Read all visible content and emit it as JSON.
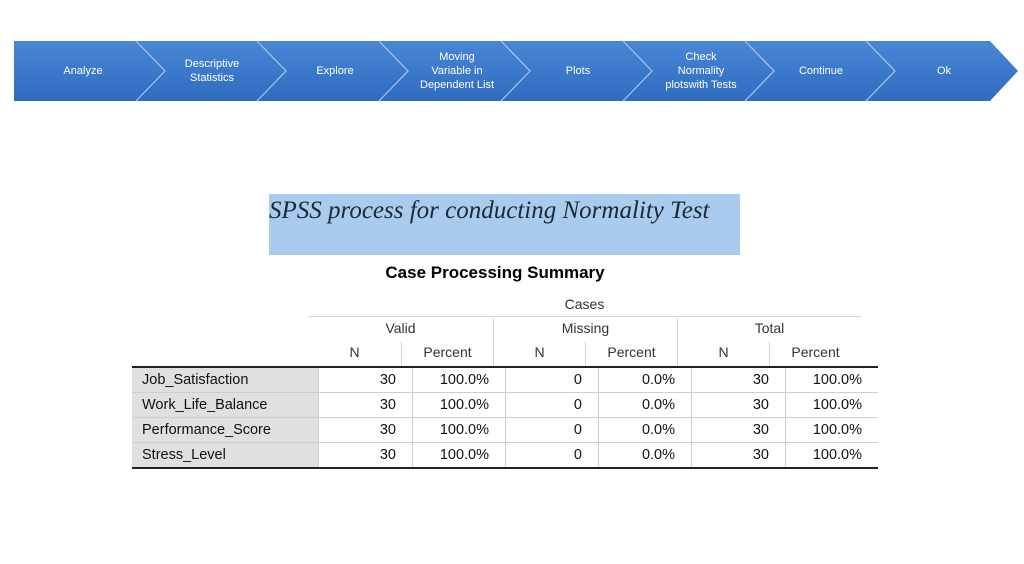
{
  "process": {
    "steps": [
      "Analyze",
      "Descriptive\nStatistics",
      "Explore",
      "Moving\nVariable in\nDependent List",
      "Plots",
      "Check\nNormality\nplotswith Tests",
      "Continue",
      "Ok"
    ],
    "fill_color": "#3a78c9",
    "border_color": "#a8c6ea"
  },
  "caption": {
    "text": "SPSS process for conducting Normality Test",
    "background": "#a9cbee"
  },
  "table": {
    "title": "Case Processing Summary",
    "group_header": "Cases",
    "subgroups": [
      "Valid",
      "Missing",
      "Total"
    ],
    "column_headers": [
      "N",
      "Percent",
      "N",
      "Percent",
      "N",
      "Percent"
    ],
    "rows": [
      {
        "label": "Job_Satisfaction",
        "cells": [
          "30",
          "100.0%",
          "0",
          "0.0%",
          "30",
          "100.0%"
        ]
      },
      {
        "label": "Work_Life_Balance",
        "cells": [
          "30",
          "100.0%",
          "0",
          "0.0%",
          "30",
          "100.0%"
        ]
      },
      {
        "label": "Performance_Score",
        "cells": [
          "30",
          "100.0%",
          "0",
          "0.0%",
          "30",
          "100.0%"
        ]
      },
      {
        "label": "Stress_Level",
        "cells": [
          "30",
          "100.0%",
          "0",
          "0.0%",
          "30",
          "100.0%"
        ]
      }
    ]
  }
}
